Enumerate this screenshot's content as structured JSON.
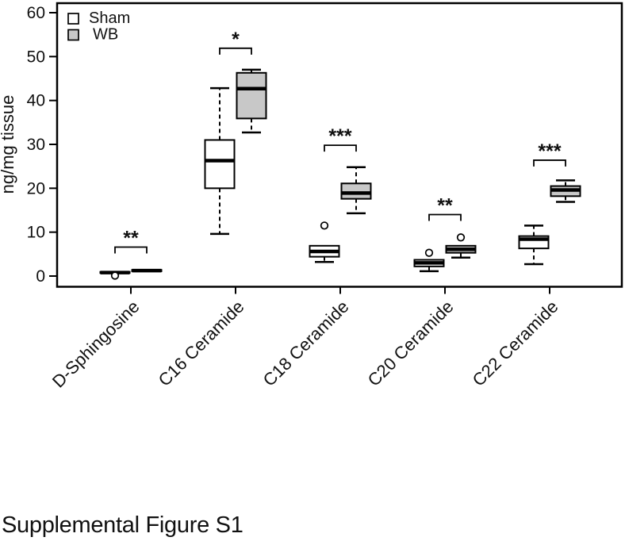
{
  "caption": "Supplemental Figure S1",
  "chart_data": {
    "type": "boxplot",
    "title": "",
    "xlabel": "",
    "ylabel": "ng/mg tissue",
    "ylim": [
      0,
      60
    ],
    "yticks": [
      0,
      10,
      20,
      30,
      40,
      50,
      60
    ],
    "grid": false,
    "legend_position": "top-left",
    "categories": [
      "D-Sphingosine",
      "C16 Ceramide",
      "C18 Ceramide",
      "C20 Ceramide",
      "C22 Ceramide"
    ],
    "colors": {
      "sham_fill": "#ffffff",
      "wb_fill": "#c8c8c8",
      "line": "#000000"
    },
    "legend": [
      {
        "name": "Sham",
        "fill": "#ffffff"
      },
      {
        "name": "WB",
        "fill": "#c8c8c8"
      }
    ],
    "series": [
      {
        "name": "Sham",
        "fill": "#ffffff",
        "boxes": [
          {
            "category": "D-Sphingosine",
            "low": null,
            "q1": 0.7,
            "median": 0.8,
            "q3": 0.95,
            "high": null,
            "outliers": [
              0.1
            ]
          },
          {
            "category": "C16 Ceramide",
            "low": 9.6,
            "q1": 20.0,
            "median": 26.3,
            "q3": 31.0,
            "high": 42.8,
            "outliers": []
          },
          {
            "category": "C18 Ceramide",
            "low": 3.2,
            "q1": 4.4,
            "median": 5.6,
            "q3": 6.9,
            "high": null,
            "outliers": [
              11.5
            ]
          },
          {
            "category": "C20 Ceramide",
            "low": 1.1,
            "q1": 2.2,
            "median": 3.0,
            "q3": 3.7,
            "high": null,
            "outliers": [
              5.3
            ]
          },
          {
            "category": "C22 Ceramide",
            "low": 2.7,
            "q1": 6.3,
            "median": 8.4,
            "q3": 9.1,
            "high": 11.5,
            "outliers": []
          }
        ]
      },
      {
        "name": "WB",
        "fill": "#c8c8c8",
        "boxes": [
          {
            "category": "D-Sphingosine",
            "low": null,
            "q1": 1.1,
            "median": 1.25,
            "q3": 1.4,
            "high": null,
            "outliers": []
          },
          {
            "category": "C16 Ceramide",
            "low": 32.7,
            "q1": 35.9,
            "median": 42.7,
            "q3": 46.3,
            "high": 47.0,
            "outliers": []
          },
          {
            "category": "C18 Ceramide",
            "low": 14.3,
            "q1": 17.6,
            "median": 18.9,
            "q3": 21.1,
            "high": 24.8,
            "outliers": []
          },
          {
            "category": "C20 Ceramide",
            "low": 4.2,
            "q1": 5.3,
            "median": 6.1,
            "q3": 6.9,
            "high": null,
            "outliers": [
              8.8
            ]
          },
          {
            "category": "C22 Ceramide",
            "low": 16.9,
            "q1": 18.2,
            "median": 19.6,
            "q3": 20.5,
            "high": 21.8,
            "outliers": []
          }
        ]
      }
    ],
    "significance": [
      {
        "category": "D-Sphingosine",
        "label": "**",
        "bar_y": 6.6
      },
      {
        "category": "C16 Ceramide",
        "label": "*",
        "bar_y": 51.9
      },
      {
        "category": "C18 Ceramide",
        "label": "***",
        "bar_y": 29.8
      },
      {
        "category": "C20 Ceramide",
        "label": "**",
        "bar_y": 14.0
      },
      {
        "category": "C22 Ceramide",
        "label": "***",
        "bar_y": 26.4
      }
    ]
  }
}
